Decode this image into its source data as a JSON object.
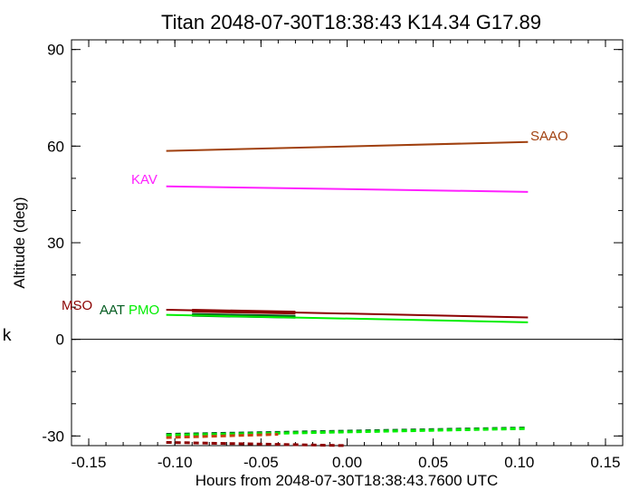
{
  "chart_data": {
    "type": "line",
    "title": "Titan 2048-07-30T18:38:43  K14.34  G17.89",
    "xlabel": "Hours from 2048-07-30T18:38:43.7600 UTC",
    "ylabel": "Altitude (deg)",
    "xlim": [
      -0.16,
      0.16
    ],
    "ylim": [
      -33,
      93
    ],
    "xticks": [
      -0.15,
      -0.1,
      -0.05,
      0.0,
      0.05,
      0.1,
      0.15
    ],
    "xtick_labels": [
      "-0.15",
      "-0.10",
      "-0.05",
      "0.00",
      "0.05",
      "0.10",
      "0.15"
    ],
    "yticks": [
      -30,
      0,
      30,
      60,
      90
    ],
    "ytick_labels": [
      "-30",
      "0",
      "30",
      "60",
      "90"
    ],
    "grid": false,
    "zero_line": true,
    "series": [
      {
        "name": "SAAO",
        "color": "#a0400f",
        "label_at": "end",
        "x": [
          -0.105,
          0.105
        ],
        "y": [
          58.5,
          61.3
        ],
        "thick": null,
        "below": null
      },
      {
        "name": "KAV",
        "color": "#ff20ff",
        "label_at": "start",
        "x": [
          -0.105,
          0.105
        ],
        "y": [
          47.5,
          45.8
        ],
        "thick": null,
        "below": null
      },
      {
        "name": "MSO",
        "color": "#8b0000",
        "label_at": "start",
        "x": [
          -0.105,
          0.105
        ],
        "y": [
          9.2,
          6.8
        ],
        "thick": {
          "x": [
            -0.09,
            -0.03
          ],
          "y": [
            8.9,
            8.3
          ]
        },
        "below": {
          "x": [
            -0.105,
            0.0
          ],
          "y": [
            -32.0,
            -33.0
          ]
        }
      },
      {
        "name": "AAT",
        "color": "#005a1e",
        "label_at": "start",
        "x": [
          -0.09,
          -0.03
        ],
        "y": [
          7.6,
          7.0
        ],
        "thick": {
          "x": [
            -0.09,
            -0.03
          ],
          "y": [
            7.6,
            7.0
          ]
        },
        "below": {
          "x": [
            -0.105,
            0.105
          ],
          "y": [
            -29.5,
            -27.5
          ]
        }
      },
      {
        "name": "PMO",
        "color": "#00ee00",
        "label_at": "start",
        "x": [
          -0.105,
          0.105
        ],
        "y": [
          7.6,
          5.3
        ],
        "thick": null,
        "below": {
          "x": [
            -0.105,
            0.105
          ],
          "y": [
            -29.8,
            -27.7
          ]
        }
      },
      {
        "name": "",
        "color": "#c84010",
        "label_at": "none",
        "x": [],
        "y": [],
        "thick": null,
        "below": {
          "x": [
            -0.105,
            -0.04
          ],
          "y": [
            -30.5,
            -29.5
          ]
        }
      }
    ]
  },
  "stray_text": "k"
}
